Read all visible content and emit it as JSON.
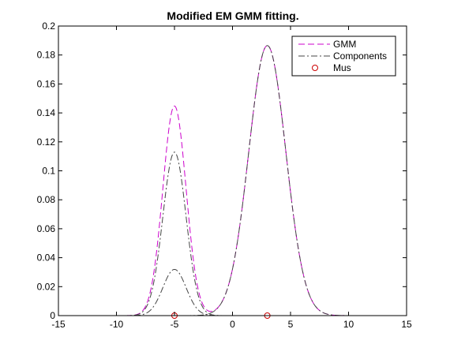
{
  "chart_data": {
    "type": "line",
    "title": "Modified EM GMM fitting.",
    "xlabel": "",
    "ylabel": "",
    "xlim": [
      -15,
      15
    ],
    "ylim": [
      0,
      0.2
    ],
    "x_ticks": [
      -15,
      -10,
      -5,
      0,
      5,
      10,
      15
    ],
    "x_tick_labels": [
      "-15",
      "-10",
      "-5",
      "0",
      "5",
      "10",
      "15"
    ],
    "y_ticks": [
      0,
      0.02,
      0.04,
      0.06,
      0.08,
      0.1,
      0.12,
      0.14,
      0.16,
      0.18,
      0.2
    ],
    "y_tick_labels": [
      "0",
      "0.02",
      "0.04",
      "0.06",
      "0.08",
      "0.1",
      "0.12",
      "0.14",
      "0.16",
      "0.18",
      "0.2"
    ],
    "grid": false,
    "legend_position": "top-right",
    "legend": [
      {
        "label": "GMM",
        "style": "dashed",
        "color": "#cc00cc"
      },
      {
        "label": "Components",
        "style": "dashdot",
        "color": "#444444"
      },
      {
        "label": "Mus",
        "style": "marker-circle",
        "color": "#cc0000"
      }
    ],
    "series": [
      {
        "name": "GMM",
        "kind": "gmm_sum",
        "color": "#cc00cc",
        "style": "dashed",
        "components": [
          {
            "mu": -5,
            "sigma": 1.0,
            "weight": 0.283
          },
          {
            "mu": -5,
            "sigma": 1.0,
            "weight": 0.08
          },
          {
            "mu": 3,
            "sigma": 1.6,
            "weight": 0.748
          }
        ]
      },
      {
        "name": "Components",
        "kind": "gaussian",
        "color": "#444444",
        "style": "dashdot",
        "mu": -5,
        "sigma": 1.0,
        "weight": 0.283
      },
      {
        "kind": "gaussian",
        "color": "#444444",
        "style": "dashdot",
        "mu": -5,
        "sigma": 1.0,
        "weight": 0.08
      },
      {
        "kind": "gaussian",
        "color": "#444444",
        "style": "dashdot",
        "mu": 3,
        "sigma": 1.6,
        "weight": 0.748
      }
    ],
    "mus": {
      "name": "Mus",
      "x": [
        -5,
        3
      ],
      "y": [
        0,
        0
      ],
      "color": "#cc0000"
    }
  }
}
